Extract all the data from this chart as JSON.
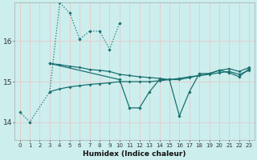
{
  "bg_color": "#cceeed",
  "line_color": "#1a7070",
  "grid_color": "#b8d8d8",
  "xlabel": "Humidex (Indice chaleur)",
  "yticks": [
    14,
    15,
    16
  ],
  "xlim": [
    -0.5,
    23.5
  ],
  "ylim": [
    13.55,
    16.95
  ],
  "series": {
    "dotted": {
      "x": [
        0,
        1,
        3,
        4,
        5,
        6,
        7,
        8,
        9,
        10
      ],
      "y": [
        14.25,
        14.0,
        14.75,
        16.95,
        16.7,
        16.05,
        16.25,
        16.25,
        15.8,
        16.45
      ]
    },
    "upper_solid": {
      "x": [
        3,
        4,
        5,
        6,
        7,
        8,
        9,
        10,
        11,
        12,
        13,
        14,
        15,
        16,
        17,
        18,
        19,
        20,
        21,
        22,
        23
      ],
      "y": [
        15.45,
        15.42,
        15.38,
        15.35,
        15.3,
        15.28,
        15.25,
        15.18,
        15.15,
        15.12,
        15.1,
        15.08,
        15.05,
        15.05,
        15.1,
        15.15,
        15.2,
        15.28,
        15.32,
        15.25,
        15.35
      ]
    },
    "lower_solid": {
      "x": [
        3,
        4,
        5,
        6,
        7,
        8,
        9,
        10,
        11,
        12,
        13,
        14,
        15,
        16,
        17,
        18,
        19,
        20,
        21,
        22,
        23
      ],
      "y": [
        14.75,
        14.82,
        14.87,
        14.9,
        14.93,
        14.95,
        14.97,
        15.0,
        15.0,
        15.0,
        15.0,
        15.02,
        15.05,
        15.08,
        15.12,
        15.15,
        15.18,
        15.22,
        15.25,
        15.18,
        15.28
      ]
    },
    "jagged": {
      "x": [
        3,
        10,
        11,
        12,
        13,
        14,
        15,
        16,
        17,
        18,
        19,
        20,
        21,
        22,
        23
      ],
      "y": [
        15.45,
        15.05,
        14.35,
        14.35,
        14.75,
        15.05,
        15.05,
        14.15,
        14.75,
        15.2,
        15.2,
        15.28,
        15.22,
        15.12,
        15.32
      ]
    }
  }
}
